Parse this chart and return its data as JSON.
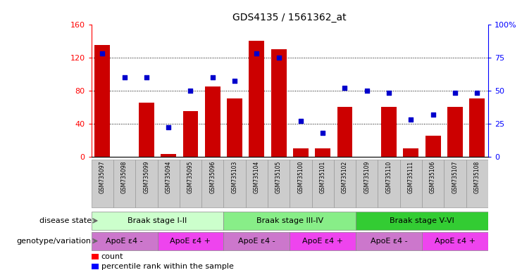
{
  "title": "GDS4135 / 1561362_at",
  "samples": [
    "GSM735097",
    "GSM735098",
    "GSM735099",
    "GSM735094",
    "GSM735095",
    "GSM735096",
    "GSM735103",
    "GSM735104",
    "GSM735105",
    "GSM735100",
    "GSM735101",
    "GSM735102",
    "GSM735109",
    "GSM735110",
    "GSM735111",
    "GSM735106",
    "GSM735107",
    "GSM735108"
  ],
  "counts": [
    135,
    0,
    65,
    3,
    55,
    85,
    70,
    140,
    130,
    10,
    10,
    60,
    0,
    60,
    10,
    25,
    60,
    70
  ],
  "percentiles": [
    78,
    60,
    60,
    22,
    50,
    60,
    57,
    78,
    75,
    27,
    18,
    52,
    50,
    48,
    28,
    32,
    48,
    48
  ],
  "bar_color": "#cc0000",
  "dot_color": "#0000cc",
  "ylim_left": [
    0,
    160
  ],
  "ylim_right": [
    0,
    100
  ],
  "yticks_left": [
    0,
    40,
    80,
    120,
    160
  ],
  "yticks_right": [
    0,
    25,
    50,
    75,
    100
  ],
  "ytick_labels_right": [
    "0",
    "25",
    "50",
    "75",
    "100%"
  ],
  "disease_stages": [
    {
      "label": "Braak stage I-II",
      "start": 0,
      "end": 6,
      "color": "#ccffcc"
    },
    {
      "label": "Braak stage III-IV",
      "start": 6,
      "end": 12,
      "color": "#88ee88"
    },
    {
      "label": "Braak stage V-VI",
      "start": 12,
      "end": 18,
      "color": "#33cc33"
    }
  ],
  "genotype_groups": [
    {
      "label": "ApoE ε4 -",
      "start": 0,
      "end": 3,
      "color": "#cc77cc"
    },
    {
      "label": "ApoE ε4 +",
      "start": 3,
      "end": 6,
      "color": "#ee44ee"
    },
    {
      "label": "ApoE ε4 -",
      "start": 6,
      "end": 9,
      "color": "#cc77cc"
    },
    {
      "label": "ApoE ε4 +",
      "start": 9,
      "end": 12,
      "color": "#ee44ee"
    },
    {
      "label": "ApoE ε4 -",
      "start": 12,
      "end": 15,
      "color": "#cc77cc"
    },
    {
      "label": "ApoE ε4 +",
      "start": 15,
      "end": 18,
      "color": "#ee44ee"
    }
  ],
  "disease_label": "disease state",
  "genotype_label": "genotype/variation",
  "legend_count": "count",
  "legend_percentile": "percentile rank within the sample",
  "tick_bg_color": "#cccccc",
  "tick_border_color": "#999999"
}
